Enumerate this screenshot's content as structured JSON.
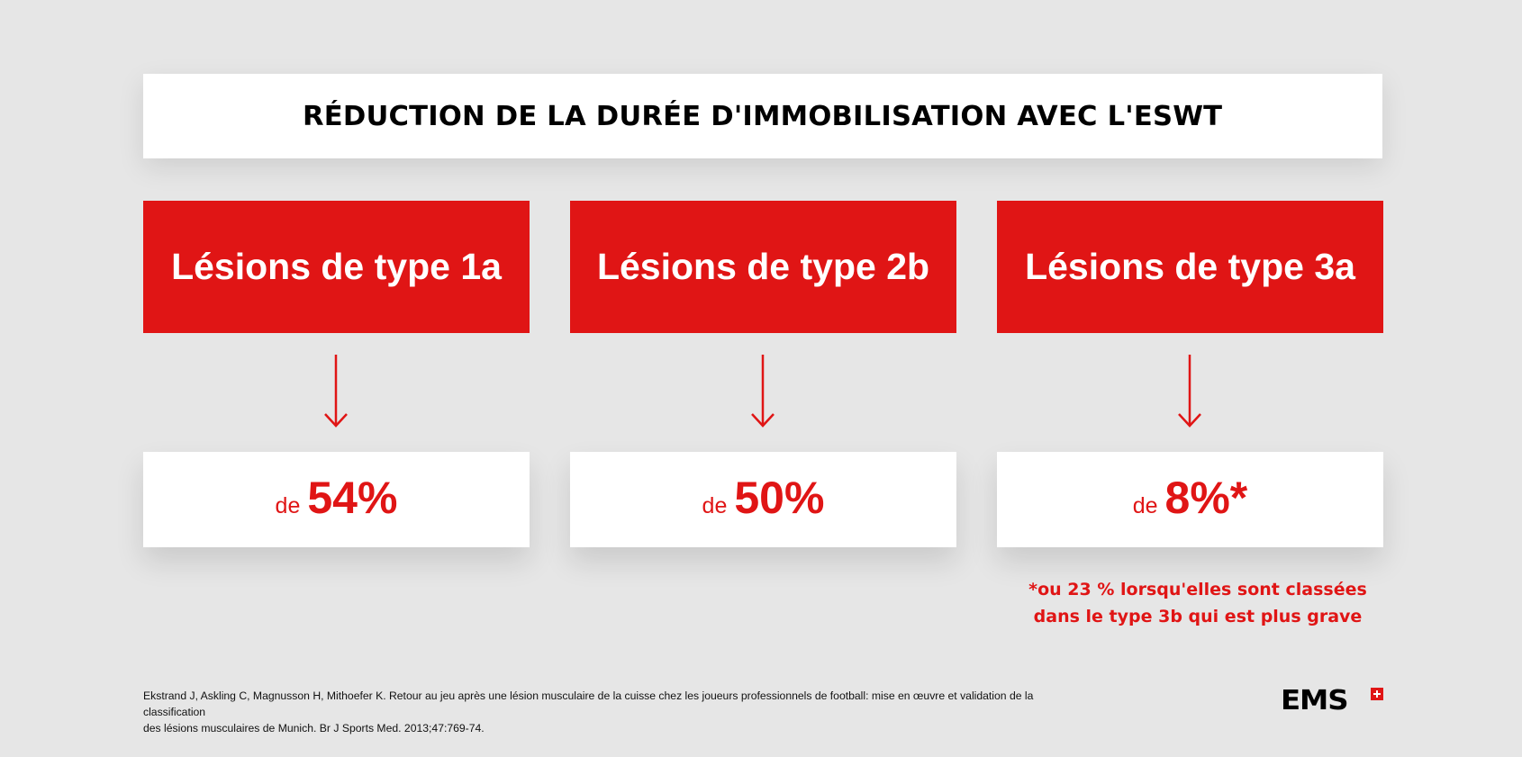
{
  "title": "RÉDUCTION DE LA DURÉE D'IMMOBILISATION AVEC L'ESWT",
  "colors": {
    "accent_red": "#e01515",
    "background": "#e6e6e6",
    "box_white": "#ffffff"
  },
  "columns": [
    {
      "label": "Lésions de type 1a",
      "prefix": "de",
      "value": "54%"
    },
    {
      "label": "Lésions de type 2b",
      "prefix": "de",
      "value": "50%"
    },
    {
      "label": "Lésions de type 3a",
      "prefix": "de",
      "value": "8%*"
    }
  ],
  "footnote": {
    "line1": "*ou 23 % lorsqu'elles sont classées",
    "line2": "dans le type 3b qui est plus grave"
  },
  "reference": {
    "line1": "Ekstrand J, Askling C, Magnusson H, Mithoefer K. Retour au jeu après une lésion musculaire de la cuisse chez les joueurs professionnels de football: mise en œuvre et validation de la classification",
    "line2": "des lésions musculaires de Munich. Br J Sports Med. 2013;47:769-74."
  },
  "logo": {
    "text": "EMS",
    "icon": "swiss-cross-icon"
  }
}
